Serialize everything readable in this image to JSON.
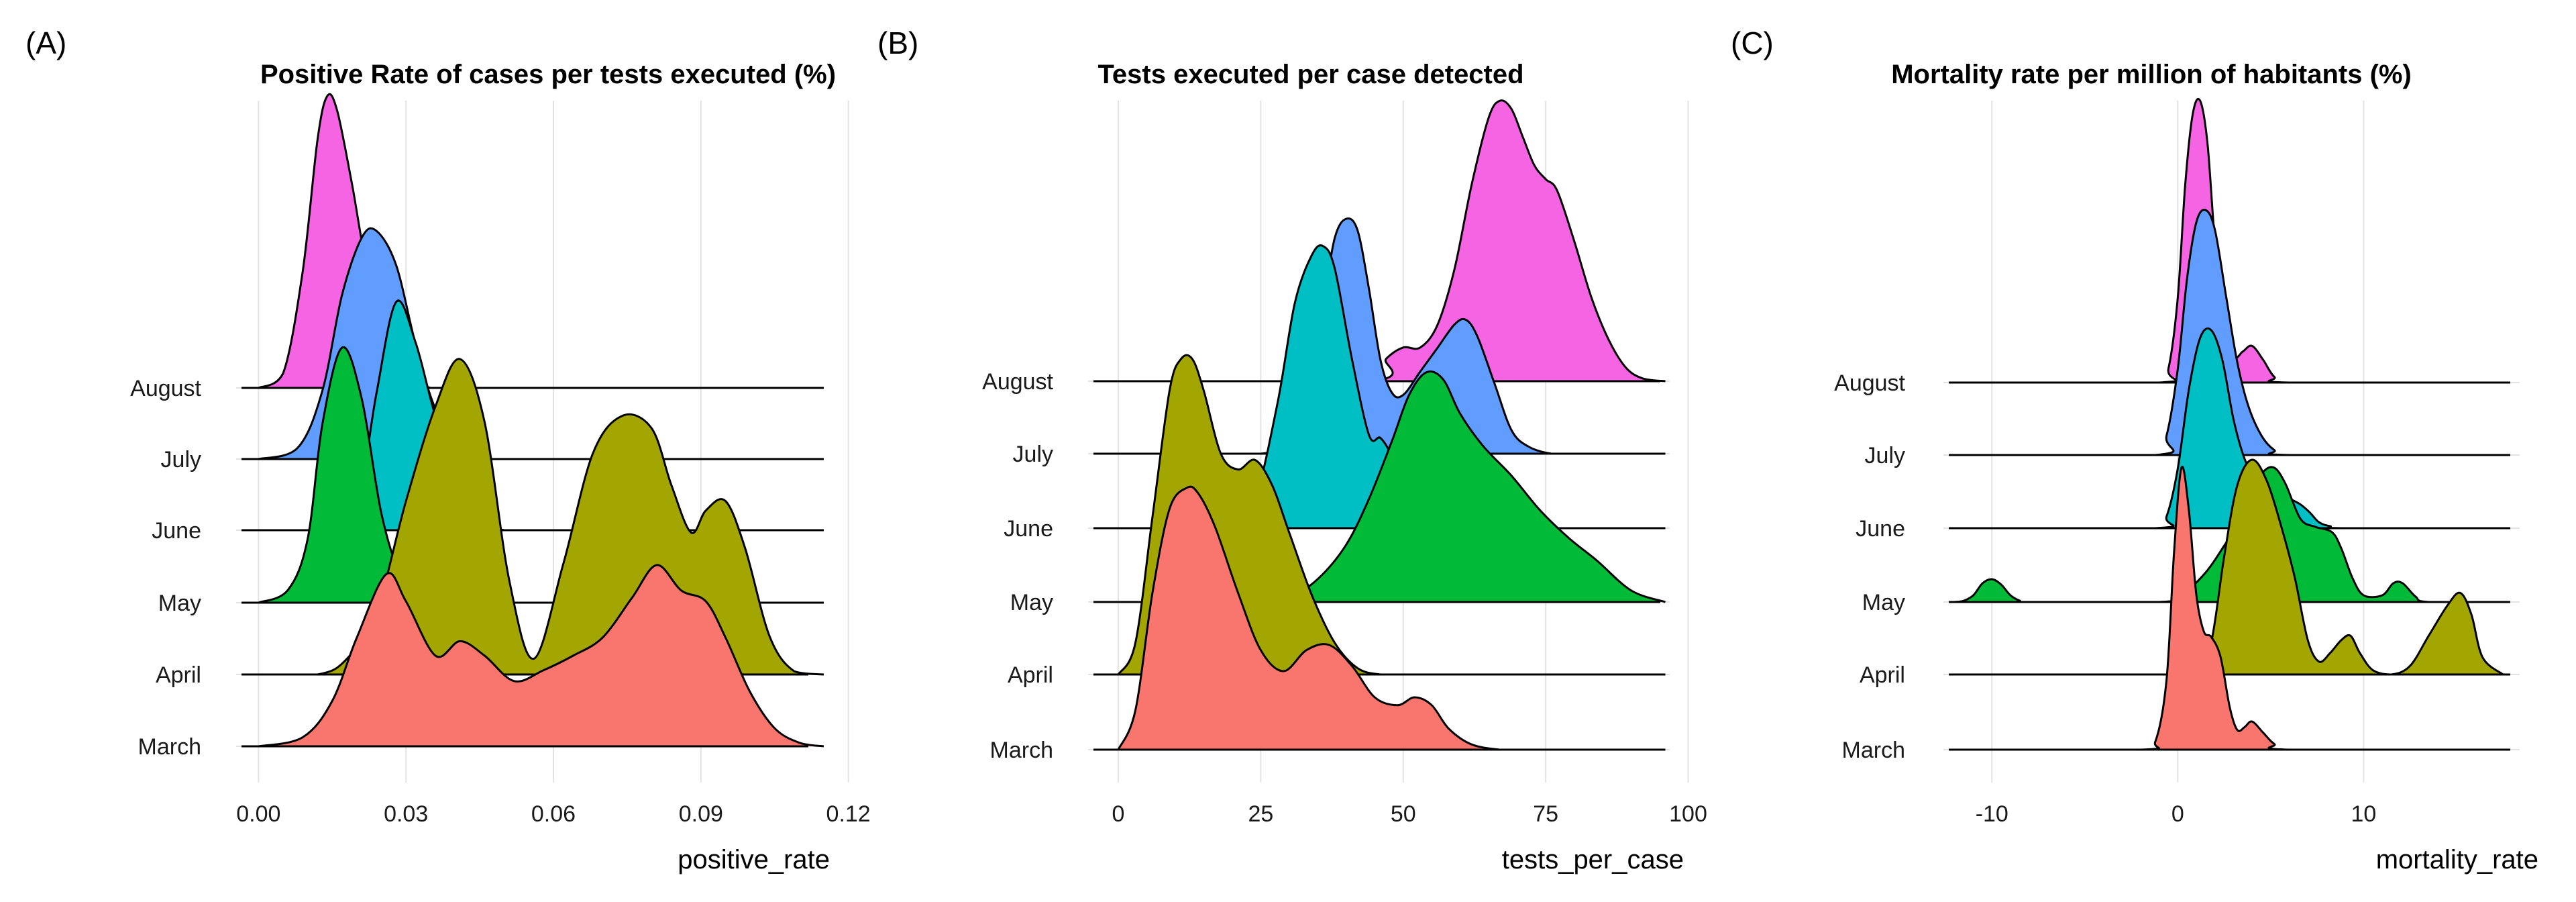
{
  "chart_data": [
    {
      "panel": "(A)",
      "type": "ridgeline",
      "title": "Positive Rate of cases per tests executed (%)",
      "xlabel": "positive_rate",
      "xlim": [
        -0.001,
        0.118
      ],
      "xticks": [
        0.0,
        0.03,
        0.06,
        0.09,
        0.12
      ],
      "xtick_labels": [
        "0.00",
        "0.03",
        "0.06",
        "0.09",
        "0.12"
      ],
      "categories": [
        "March",
        "April",
        "May",
        "June",
        "July",
        "August"
      ],
      "series": [
        {
          "name": "March",
          "color": "#F8766D",
          "x": [
            0.0,
            0.009,
            0.015,
            0.02,
            0.026,
            0.03,
            0.036,
            0.041,
            0.046,
            0.052,
            0.058,
            0.064,
            0.07,
            0.076,
            0.081,
            0.086,
            0.091,
            0.095,
            0.1,
            0.105,
            0.11,
            0.115
          ],
          "density": [
            0,
            0.05,
            0.25,
            0.6,
            0.95,
            0.8,
            0.5,
            0.58,
            0.5,
            0.36,
            0.42,
            0.5,
            0.6,
            0.82,
            1.0,
            0.86,
            0.8,
            0.6,
            0.3,
            0.1,
            0.02,
            0
          ]
        },
        {
          "name": "April",
          "color": "#A3A500",
          "x": [
            0.0,
            0.012,
            0.018,
            0.024,
            0.03,
            0.036,
            0.041,
            0.046,
            0.051,
            0.056,
            0.062,
            0.068,
            0.074,
            0.08,
            0.084,
            0.088,
            0.091,
            0.095,
            0.099,
            0.104,
            0.109,
            0.115
          ],
          "density": [
            0,
            0.0,
            0.05,
            0.2,
            0.55,
            0.85,
            1.0,
            0.8,
            0.3,
            0.05,
            0.35,
            0.7,
            0.82,
            0.78,
            0.6,
            0.45,
            0.52,
            0.55,
            0.4,
            0.12,
            0.01,
            0
          ]
        },
        {
          "name": "May",
          "color": "#00BA38",
          "x": [
            0.0,
            0.006,
            0.01,
            0.013,
            0.017,
            0.021,
            0.025,
            0.029,
            0.033,
            0.038,
            0.045,
            0.06,
            0.115
          ],
          "density": [
            0,
            0.05,
            0.25,
            0.7,
            1.0,
            0.8,
            0.35,
            0.1,
            0.02,
            0,
            0,
            0,
            0
          ]
        },
        {
          "name": "June",
          "color": "#00BFC4",
          "x": [
            0.0,
            0.015,
            0.02,
            0.024,
            0.028,
            0.032,
            0.036,
            0.041,
            0.046,
            0.05,
            0.06,
            0.115
          ],
          "density": [
            0,
            0,
            0.1,
            0.6,
            1.0,
            0.82,
            0.5,
            0.2,
            0.05,
            0,
            0,
            0
          ]
        },
        {
          "name": "July",
          "color": "#619CFF",
          "x": [
            0.0,
            0.008,
            0.013,
            0.017,
            0.021,
            0.024,
            0.028,
            0.032,
            0.036,
            0.041,
            0.046,
            0.06,
            0.115
          ],
          "density": [
            0,
            0.05,
            0.3,
            0.72,
            0.97,
            1.0,
            0.85,
            0.5,
            0.22,
            0.05,
            0,
            0,
            0
          ]
        },
        {
          "name": "August",
          "color": "#F564E3",
          "x": [
            0.0,
            0.005,
            0.009,
            0.012,
            0.014,
            0.016,
            0.019,
            0.022,
            0.026,
            0.03,
            0.035,
            0.045,
            0.115
          ],
          "density": [
            0,
            0.05,
            0.4,
            0.85,
            1.0,
            0.95,
            0.7,
            0.42,
            0.2,
            0.06,
            0,
            0,
            0
          ]
        }
      ]
    },
    {
      "panel": "(B)",
      "type": "ridgeline",
      "title": "Tests executed per case detected",
      "xlabel": "tests_per_case",
      "xlim": [
        -2,
        101
      ],
      "xticks": [
        0,
        25,
        50,
        75,
        100
      ],
      "xtick_labels": [
        "0",
        "25",
        "50",
        "75",
        "100"
      ],
      "categories": [
        "March",
        "April",
        "May",
        "June",
        "July",
        "August"
      ],
      "series": [
        {
          "name": "March",
          "color": "#F8766D",
          "x": [
            0,
            3,
            6,
            9,
            12,
            14,
            17,
            21,
            25,
            29,
            33,
            37,
            41,
            45,
            49,
            52,
            55,
            58,
            62,
            67,
            70,
            75,
            96
          ],
          "density": [
            0,
            0.15,
            0.6,
            0.92,
            1.0,
            0.98,
            0.85,
            0.6,
            0.38,
            0.3,
            0.38,
            0.4,
            0.32,
            0.2,
            0.17,
            0.2,
            0.17,
            0.08,
            0.02,
            0,
            0,
            0,
            0
          ]
        },
        {
          "name": "April",
          "color": "#A3A500",
          "x": [
            0,
            3,
            6,
            9,
            11,
            13,
            15,
            18,
            21,
            24,
            27,
            30,
            34,
            38,
            42,
            46,
            50,
            55,
            60,
            96
          ],
          "density": [
            0,
            0.1,
            0.5,
            0.9,
            1.0,
            1.0,
            0.9,
            0.7,
            0.65,
            0.68,
            0.6,
            0.45,
            0.25,
            0.1,
            0.02,
            0,
            0,
            0,
            0,
            0
          ]
        },
        {
          "name": "May",
          "color": "#00BA38",
          "x": [
            0,
            25,
            30,
            35,
            40,
            44,
            48,
            51,
            54,
            57,
            60,
            64,
            69,
            74,
            79,
            84,
            90,
            96
          ],
          "density": [
            0,
            0,
            0.02,
            0.1,
            0.25,
            0.45,
            0.7,
            0.9,
            1.0,
            0.97,
            0.82,
            0.68,
            0.55,
            0.4,
            0.28,
            0.18,
            0.05,
            0
          ]
        },
        {
          "name": "June",
          "color": "#00BFC4",
          "x": [
            0,
            20,
            24,
            28,
            31,
            34,
            36,
            38,
            41,
            44,
            46,
            48,
            51,
            54,
            57,
            62,
            96
          ],
          "density": [
            0,
            0,
            0.1,
            0.45,
            0.8,
            0.97,
            1.0,
            0.92,
            0.6,
            0.33,
            0.32,
            0.26,
            0.15,
            0.08,
            0.02,
            0,
            0
          ]
        },
        {
          "name": "July",
          "color": "#619CFF",
          "x": [
            0,
            25,
            30,
            33,
            36,
            38,
            40,
            42,
            44,
            46,
            48,
            50,
            53,
            56,
            59,
            61,
            63,
            66,
            69,
            72,
            76,
            80,
            96
          ],
          "density": [
            0,
            0,
            0.08,
            0.3,
            0.65,
            0.92,
            1.0,
            0.95,
            0.7,
            0.4,
            0.26,
            0.25,
            0.35,
            0.45,
            0.55,
            0.57,
            0.5,
            0.3,
            0.1,
            0.03,
            0,
            0,
            0
          ]
        },
        {
          "name": "August",
          "color": "#F564E3",
          "x": [
            0,
            44,
            47,
            50,
            53,
            56,
            59,
            62,
            65,
            67,
            69,
            71,
            73,
            75,
            77,
            80,
            83,
            86,
            89,
            92,
            96
          ],
          "density": [
            0,
            0,
            0.08,
            0.12,
            0.12,
            0.2,
            0.4,
            0.7,
            0.94,
            1.0,
            0.97,
            0.87,
            0.77,
            0.72,
            0.68,
            0.5,
            0.3,
            0.15,
            0.05,
            0.01,
            0
          ]
        }
      ]
    },
    {
      "panel": "(C)",
      "type": "ridgeline",
      "title": "Mortality rate per million of habitants (%)",
      "xlabel": "mortality_rate",
      "xlim": [
        -12.5,
        18
      ],
      "xticks": [
        -10,
        0,
        10
      ],
      "xtick_labels": [
        "-10",
        "0",
        "10"
      ],
      "categories": [
        "March",
        "April",
        "May",
        "June",
        "July",
        "August"
      ],
      "series": [
        {
          "name": "March",
          "color": "#F8766D",
          "x": [
            -12,
            -2,
            -1.2,
            -0.6,
            -0.2,
            0.2,
            0.6,
            1.0,
            1.4,
            1.8,
            2.3,
            2.8,
            3.2,
            3.6,
            4.0,
            4.6,
            5.2,
            6,
            17.5
          ],
          "density": [
            0,
            0,
            0.03,
            0.25,
            0.7,
            1.0,
            0.85,
            0.55,
            0.42,
            0.4,
            0.33,
            0.15,
            0.07,
            0.08,
            0.1,
            0.06,
            0.02,
            0,
            0
          ]
        },
        {
          "name": "April",
          "color": "#A3A500",
          "x": [
            -12,
            1.0,
            1.8,
            2.5,
            3.2,
            4.0,
            4.8,
            5.6,
            6.3,
            7.0,
            7.6,
            8.2,
            8.8,
            9.3,
            9.8,
            10.5,
            11.5,
            12.5,
            13.5,
            14.5,
            15.2,
            15.8,
            16.4,
            17.5
          ],
          "density": [
            0,
            0,
            0.15,
            0.55,
            0.88,
            1.0,
            0.9,
            0.68,
            0.45,
            0.16,
            0.06,
            0.1,
            0.16,
            0.18,
            0.1,
            0.02,
            0,
            0.04,
            0.18,
            0.32,
            0.38,
            0.28,
            0.08,
            0
          ]
        },
        {
          "name": "May",
          "color": "#00BA38",
          "x": [
            -12,
            -11.5,
            -11,
            -10.5,
            -10,
            -9.5,
            -9,
            -8.5,
            -8,
            -1.0,
            0.2,
            1.5,
            2.5,
            3.3,
            4.0,
            4.6,
            5.2,
            5.8,
            6.6,
            7.4,
            8.3,
            8.8,
            9.4,
            10.0,
            11.0,
            11.6,
            12.1,
            12.8,
            13.5,
            17.5
          ],
          "density": [
            0,
            0.01,
            0.05,
            0.14,
            0.17,
            0.13,
            0.05,
            0.01,
            0,
            0,
            0.05,
            0.22,
            0.42,
            0.6,
            0.82,
            0.97,
            1.0,
            0.88,
            0.62,
            0.56,
            0.52,
            0.4,
            0.18,
            0.05,
            0.05,
            0.14,
            0.14,
            0.04,
            0,
            0
          ]
        },
        {
          "name": "June",
          "color": "#00BFC4",
          "x": [
            -12,
            -1.2,
            -0.6,
            0,
            0.6,
            1.2,
            1.8,
            2.4,
            3.0,
            3.6,
            4.2,
            4.8,
            5.4,
            6.0,
            6.6,
            7.1,
            7.6,
            8.2,
            9.0,
            17.5
          ],
          "density": [
            0,
            0,
            0.06,
            0.3,
            0.7,
            0.96,
            1.0,
            0.85,
            0.55,
            0.35,
            0.25,
            0.2,
            0.18,
            0.15,
            0.12,
            0.08,
            0.03,
            0.01,
            0,
            0
          ]
        },
        {
          "name": "July",
          "color": "#619CFF",
          "x": [
            -12,
            -1.2,
            -0.6,
            0,
            0.5,
            1.0,
            1.5,
            2.0,
            2.6,
            3.2,
            3.8,
            4.5,
            5.2,
            6.0,
            17.5
          ],
          "density": [
            0,
            0,
            0.08,
            0.35,
            0.72,
            0.95,
            1.0,
            0.92,
            0.65,
            0.38,
            0.2,
            0.08,
            0.02,
            0,
            0
          ]
        },
        {
          "name": "August",
          "color": "#F564E3",
          "x": [
            -12,
            -1.0,
            -0.5,
            0,
            0.4,
            0.8,
            1.2,
            1.6,
            2.0,
            2.5,
            3.0,
            3.5,
            4.0,
            4.6,
            5.2,
            6.0,
            17.5
          ],
          "density": [
            0,
            0,
            0.05,
            0.3,
            0.7,
            0.95,
            1.0,
            0.85,
            0.5,
            0.2,
            0.09,
            0.11,
            0.13,
            0.08,
            0.02,
            0,
            0
          ]
        }
      ]
    }
  ]
}
